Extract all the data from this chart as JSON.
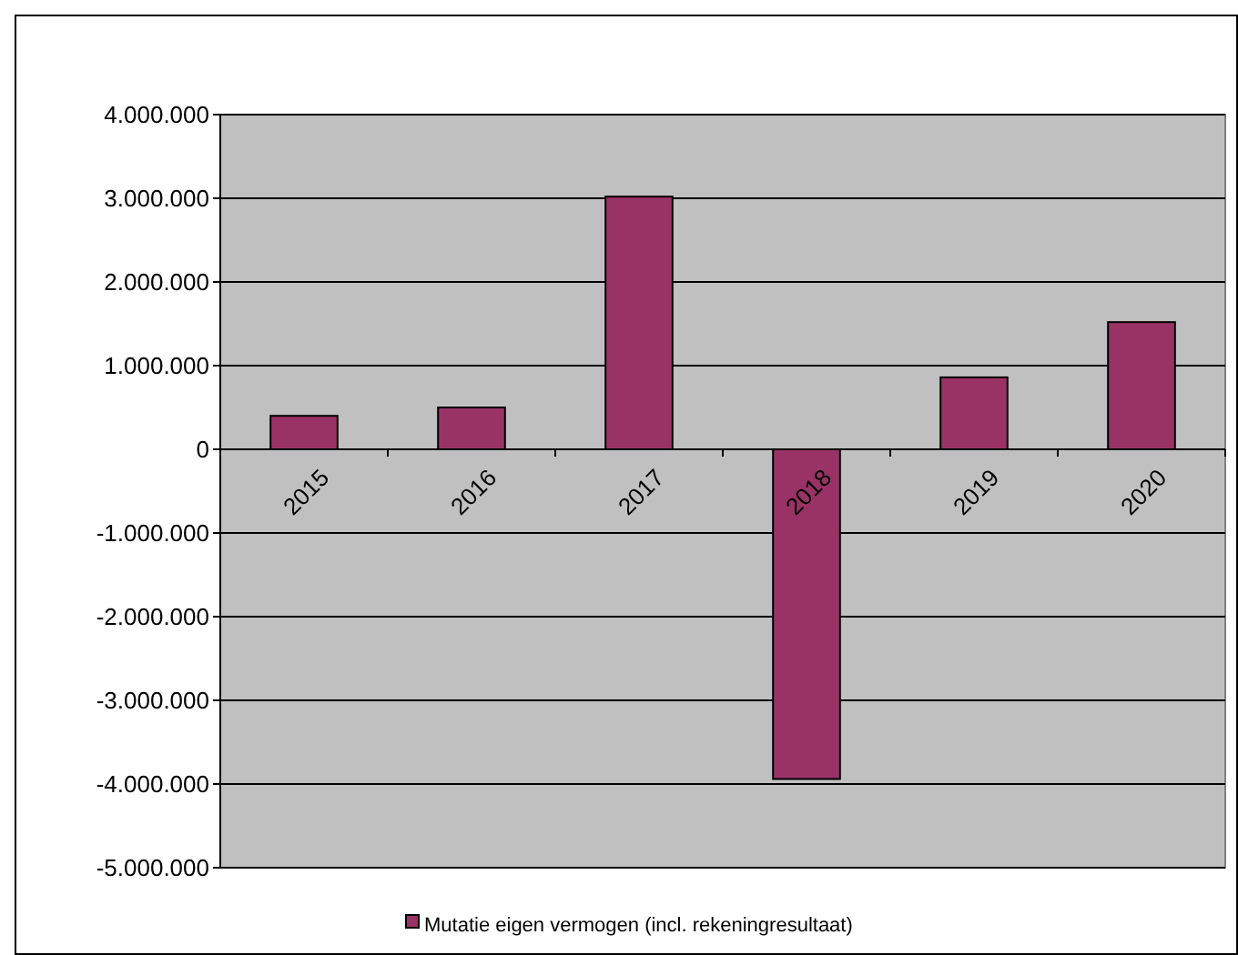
{
  "chart_data": {
    "type": "bar",
    "categories": [
      "2015",
      "2016",
      "2017",
      "2018",
      "2019",
      "2020"
    ],
    "series": [
      {
        "name": "Mutatie eigen vermogen (incl. rekeningresultaat)",
        "color": "#993366",
        "values": [
          400000,
          500000,
          3020000,
          -3940000,
          860000,
          1520000
        ]
      }
    ],
    "ylim": [
      -5000000,
      4000000
    ],
    "yticks": [
      {
        "value": -5000000,
        "label": "-5.000.000"
      },
      {
        "value": -4000000,
        "label": "-4.000.000"
      },
      {
        "value": -3000000,
        "label": "-3.000.000"
      },
      {
        "value": -2000000,
        "label": "-2.000.000"
      },
      {
        "value": -1000000,
        "label": "-1.000.000"
      },
      0,
      {
        "value": 1000000,
        "label": "1.000.000"
      },
      {
        "value": 2000000,
        "label": "2.000.000"
      },
      {
        "value": 3000000,
        "label": "3.000.000"
      },
      {
        "value": 4000000,
        "label": "4.000.000"
      }
    ],
    "grid": "y",
    "legend": "bottom"
  }
}
